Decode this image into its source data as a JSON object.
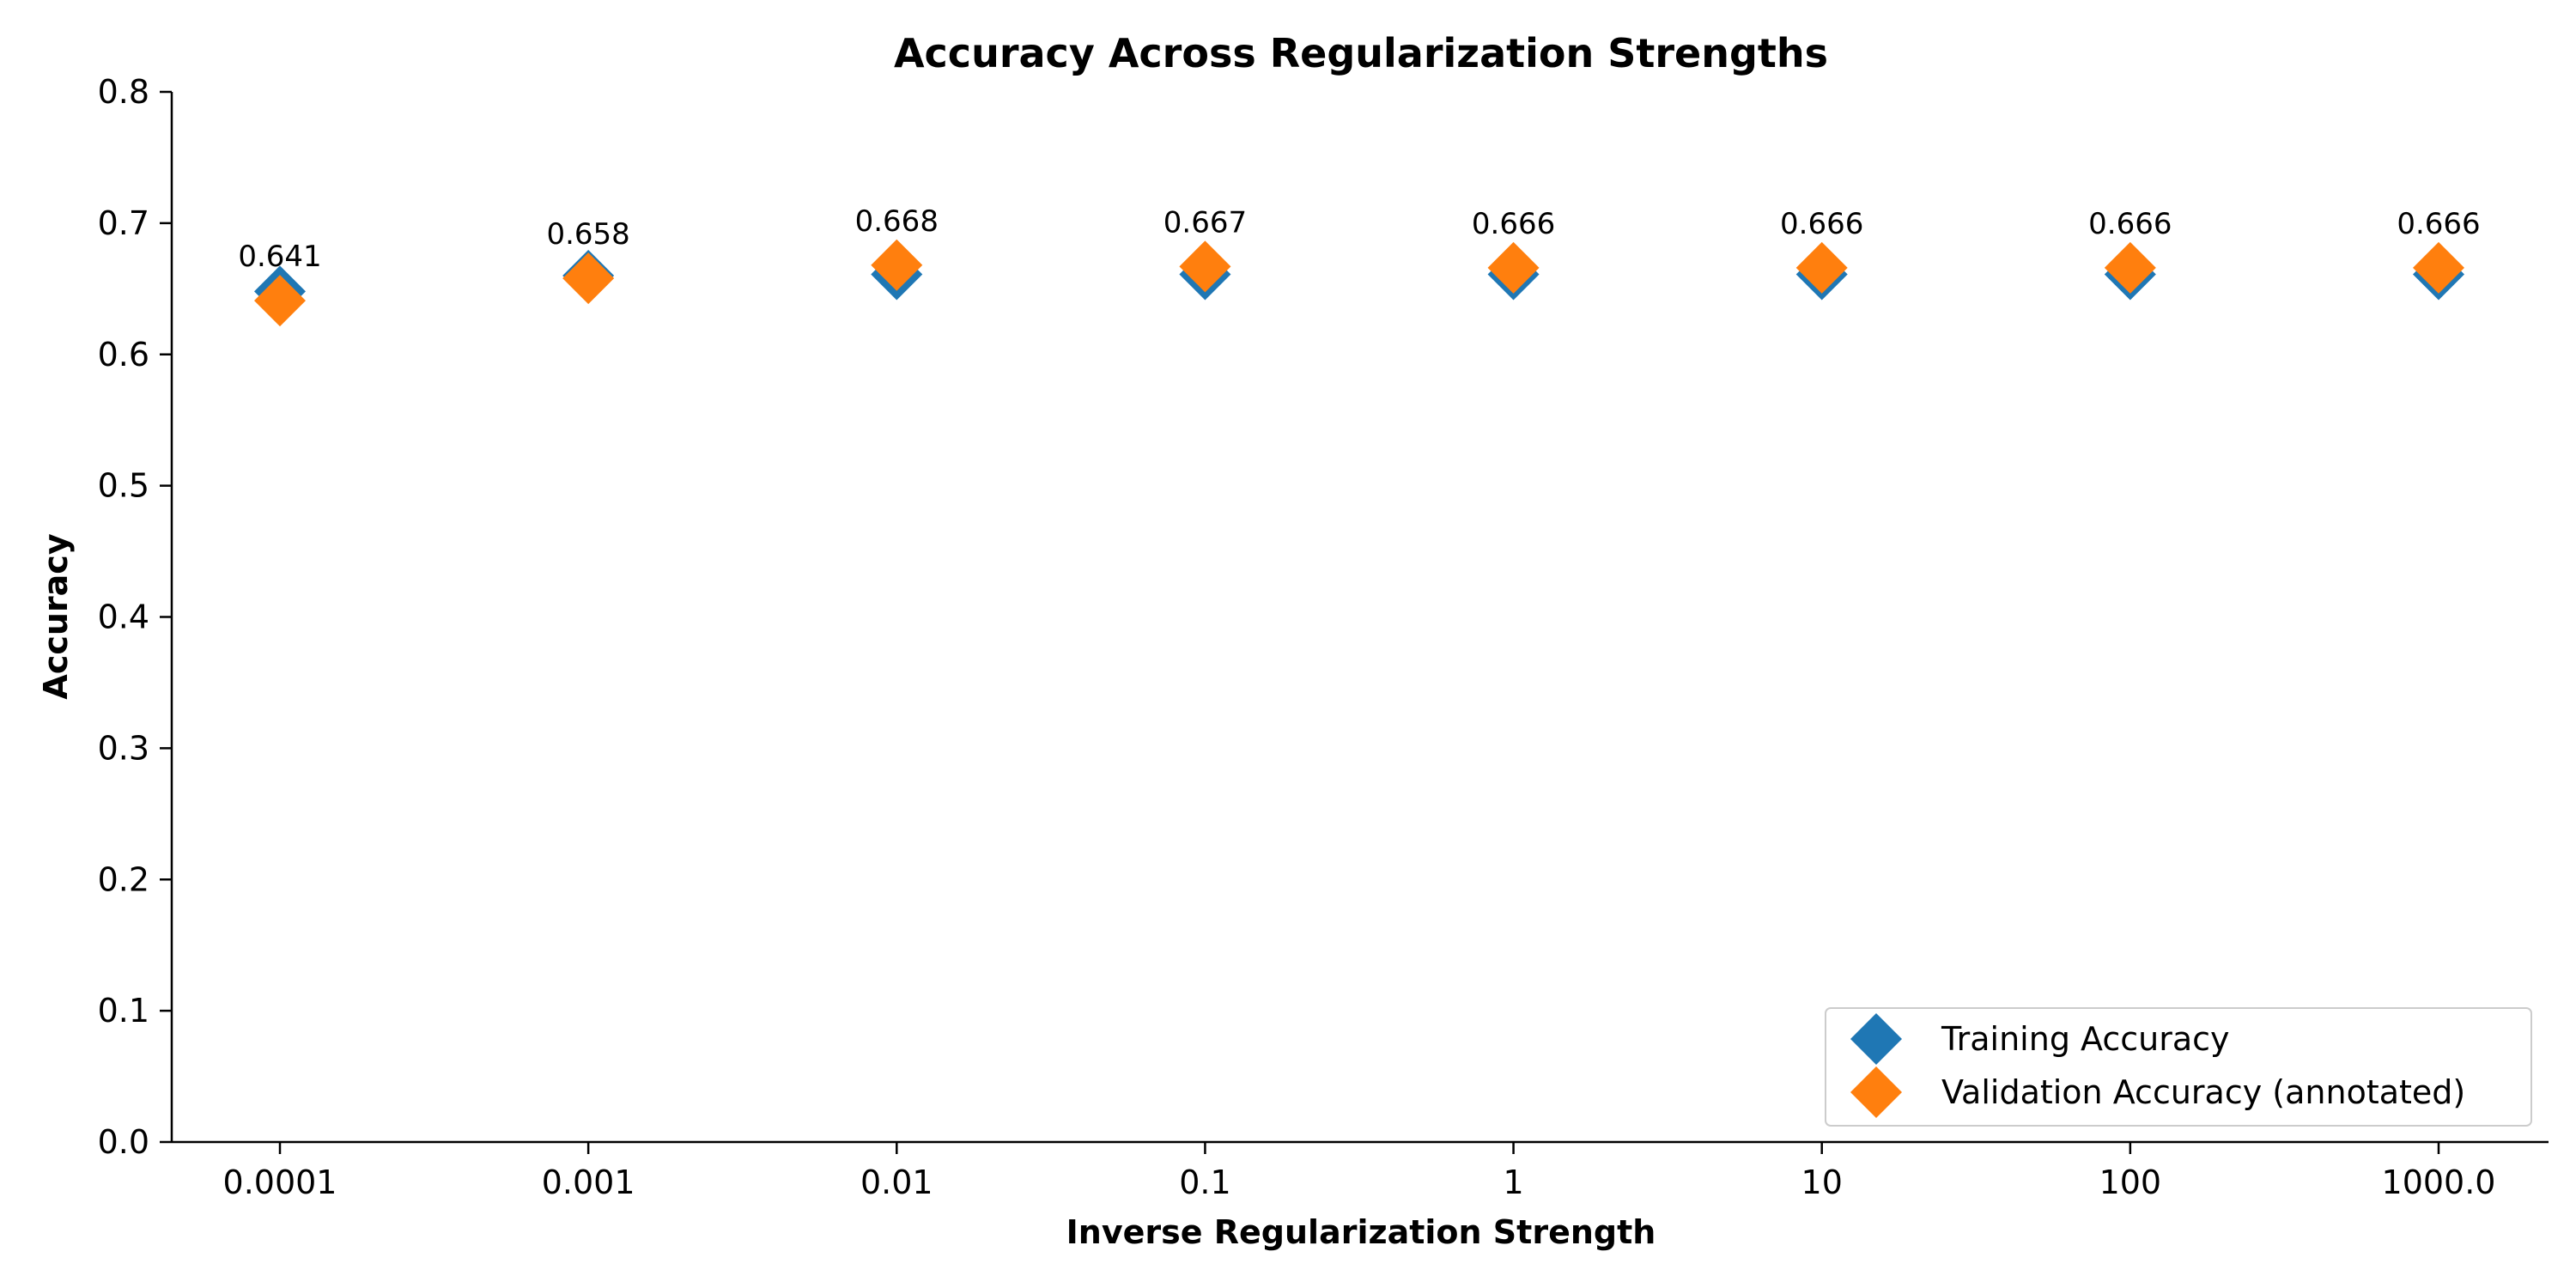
{
  "chart_data": {
    "type": "scatter",
    "title": "Accuracy Across Regularization Strengths",
    "xlabel": "Inverse Regularization Strength",
    "ylabel": "Accuracy",
    "categories": [
      "0.0001",
      "0.001",
      "0.01",
      "0.1",
      "1",
      "10",
      "100",
      "1000.0"
    ],
    "ylim": [
      0,
      0.8
    ],
    "yticks": [
      "0.0",
      "0.1",
      "0.2",
      "0.3",
      "0.4",
      "0.5",
      "0.6",
      "0.7",
      "0.8"
    ],
    "grid": false,
    "legend_position": "bottom-right",
    "marker": "diamond",
    "series": [
      {
        "name": "Training Accuracy",
        "color": "#1f77b4",
        "values": [
          0.648,
          0.66,
          0.661,
          0.661,
          0.661,
          0.661,
          0.661,
          0.661
        ]
      },
      {
        "name": "Validation Accuracy (annotated)",
        "color": "#ff7f0e",
        "values": [
          0.641,
          0.658,
          0.668,
          0.667,
          0.666,
          0.666,
          0.666,
          0.666
        ],
        "annotations": [
          "0.641",
          "0.658",
          "0.668",
          "0.667",
          "0.666",
          "0.666",
          "0.666",
          "0.666"
        ]
      }
    ]
  }
}
